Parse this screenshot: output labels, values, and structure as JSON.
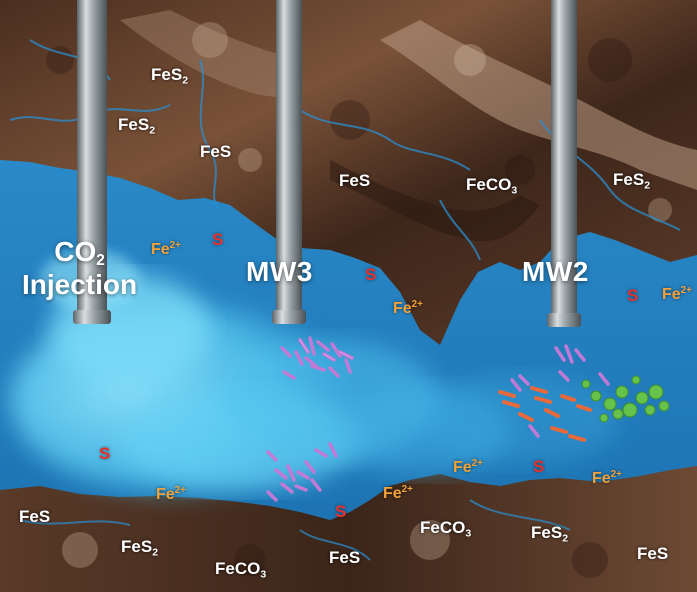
{
  "colors": {
    "rock_dark": "#3a2418",
    "rock_mid": "#6b4530",
    "rock_light": "#b89a82",
    "reservoir": "#1f7fc0",
    "plume": "#55cdf2",
    "ferrous": "#f2a23a",
    "sulfur": "#e8312c",
    "microbe_purple": "#c27ad6",
    "microbe_orange": "#e8693a",
    "microbe_green": "#66c24a"
  },
  "wells": {
    "injection": {
      "co": "CO",
      "sub": "2",
      "word": "Injection"
    },
    "mw3": "MW3",
    "mw2": "MW2"
  },
  "labels": {
    "fes2_a": {
      "base": "FeS",
      "sub": "2"
    },
    "fes2_b": {
      "base": "FeS",
      "sub": "2"
    },
    "fes_a": "FeS",
    "fes_b": "FeS",
    "feco3_a": {
      "base": "FeCO",
      "sub": "3"
    },
    "fes2_c": {
      "base": "FeS",
      "sub": "2"
    },
    "fe_a": {
      "base": "Fe",
      "sup": "2+"
    },
    "s_a": "S",
    "s_b": "S",
    "fe_b": {
      "base": "Fe",
      "sup": "2+"
    },
    "s_c": "S",
    "fe_c": {
      "base": "Fe",
      "sup": "2+"
    },
    "s_d": "S",
    "fe_d": {
      "base": "Fe",
      "sup": "2+"
    },
    "fe_e": {
      "base": "Fe",
      "sup": "2+"
    },
    "s_e": "S",
    "fe_f": {
      "base": "Fe",
      "sup": "2+"
    },
    "fe_g": {
      "base": "Fe",
      "sup": "2+"
    },
    "s_f": "S",
    "fes_c": "FeS",
    "fes2_d": {
      "base": "FeS",
      "sub": "2"
    },
    "feco3_b": {
      "base": "FeCO",
      "sub": "3"
    },
    "fes_d": "FeS",
    "feco3_c": {
      "base": "FeCO",
      "sub": "3"
    },
    "fes2_e": {
      "base": "FeS",
      "sub": "2"
    },
    "fes_e": "FeS"
  }
}
